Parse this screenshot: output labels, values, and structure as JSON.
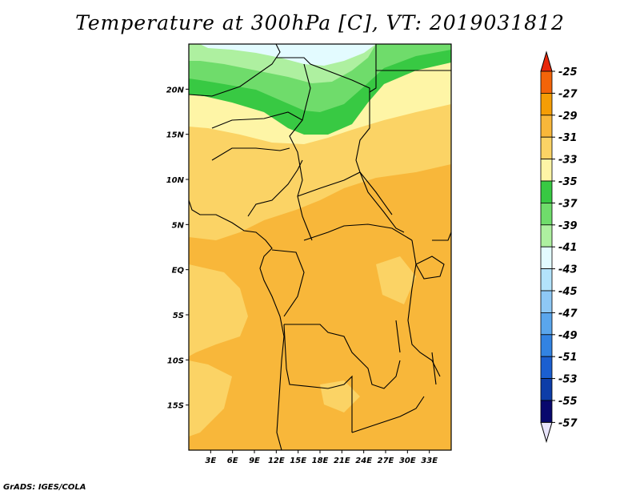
{
  "title": "Temperature at 300hPa [C], VT: 2019031812",
  "credit": "GrADS: IGES/COLA",
  "map": {
    "lon_range": [
      0,
      36
    ],
    "lat_range": [
      -20,
      25
    ],
    "lat_labels": [
      {
        "lat": 20,
        "label": "20N"
      },
      {
        "lat": 15,
        "label": "15N"
      },
      {
        "lat": 10,
        "label": "10N"
      },
      {
        "lat": 5,
        "label": "5N"
      },
      {
        "lat": 0,
        "label": "EQ"
      },
      {
        "lat": -5,
        "label": "5S"
      },
      {
        "lat": -10,
        "label": "10S"
      },
      {
        "lat": -15,
        "label": "15S"
      }
    ],
    "lon_labels": [
      {
        "lon": 3,
        "label": "3E"
      },
      {
        "lon": 6,
        "label": "6E"
      },
      {
        "lon": 9,
        "label": "9E"
      },
      {
        "lon": 12,
        "label": "12E"
      },
      {
        "lon": 15,
        "label": "15E"
      },
      {
        "lon": 18,
        "label": "18E"
      },
      {
        "lon": 21,
        "label": "21E"
      },
      {
        "lon": 24,
        "label": "24E"
      },
      {
        "lon": 27,
        "label": "27E"
      },
      {
        "lon": 30,
        "label": "30E"
      },
      {
        "lon": 33,
        "label": "33E"
      }
    ]
  },
  "colorbar": {
    "labels": [
      "-25",
      "-27",
      "-29",
      "-31",
      "-33",
      "-35",
      "-37",
      "-39",
      "-41",
      "-43",
      "-45",
      "-47",
      "-49",
      "-51",
      "-53",
      "-55",
      "-57"
    ],
    "colors": [
      "#e8270a",
      "#f36409",
      "#f59d05",
      "#f8b73a",
      "#fbd365",
      "#fef5a6",
      "#38c943",
      "#6fdc6b",
      "#aef0a0",
      "#e3fbff",
      "#b3e3fb",
      "#8ec8f5",
      "#5aa6ec",
      "#3283e2",
      "#1b5fd0",
      "#0d3da8",
      "#08086d",
      "#e8e4fb"
    ]
  }
}
